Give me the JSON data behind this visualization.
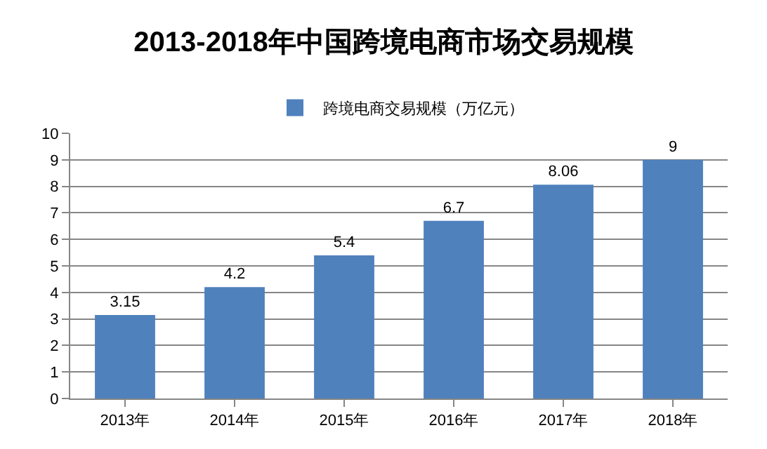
{
  "chart_data": {
    "type": "bar",
    "title": "2013-2018年中国跨境电商市场交易规模",
    "categories": [
      "2013年",
      "2014年",
      "2015年",
      "2016年",
      "2017年",
      "2018年"
    ],
    "series": [
      {
        "name": "跨境电商交易规模（万亿元）",
        "color": "#4f81bd",
        "values": [
          3.15,
          4.2,
          5.4,
          6.7,
          8.06,
          9
        ]
      }
    ],
    "ylim": [
      0,
      10
    ],
    "yticks": [
      0,
      1,
      2,
      3,
      4,
      5,
      6,
      7,
      8,
      9,
      10
    ],
    "grid": "y",
    "legend": "top",
    "data_labels": true
  }
}
